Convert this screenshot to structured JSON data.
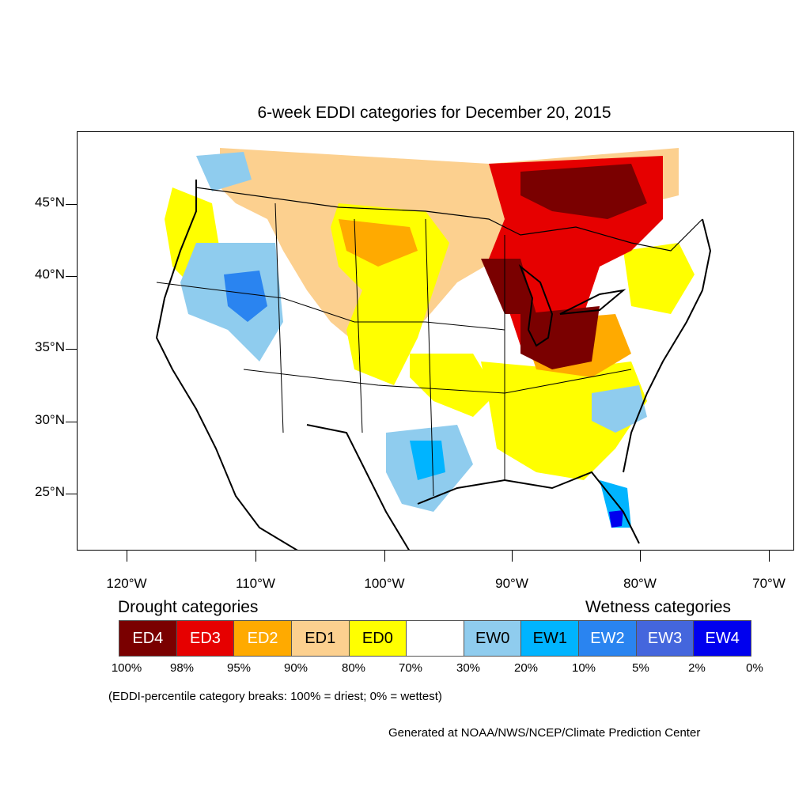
{
  "title": "6-week EDDI categories for December 20, 2015",
  "lat_labels": [
    "45°N",
    "40°N",
    "35°N",
    "30°N",
    "25°N"
  ],
  "lon_labels": [
    "120°W",
    "110°W",
    "100°W",
    "90°W",
    "80°W",
    "70°W"
  ],
  "legend": {
    "drought_heading": "Drought categories",
    "wetness_heading": "Wetness categories",
    "categories": [
      {
        "label": "ED4",
        "color": "#7a0000",
        "text_color": "#ffffff"
      },
      {
        "label": "ED3",
        "color": "#e60000",
        "text_color": "#ffffff"
      },
      {
        "label": "ED2",
        "color": "#ffaa00",
        "text_color": "#ffffff"
      },
      {
        "label": "ED1",
        "color": "#fcd08f",
        "text_color": "#000000"
      },
      {
        "label": "ED0",
        "color": "#ffff00",
        "text_color": "#000000"
      },
      {
        "label": "",
        "color": "#ffffff",
        "text_color": "#000000"
      },
      {
        "label": "EW0",
        "color": "#8fccee",
        "text_color": "#000000"
      },
      {
        "label": "EW1",
        "color": "#00b4ff",
        "text_color": "#000000"
      },
      {
        "label": "EW2",
        "color": "#2a84f0",
        "text_color": "#ffffff"
      },
      {
        "label": "EW3",
        "color": "#4466dd",
        "text_color": "#ffffff"
      },
      {
        "label": "EW4",
        "color": "#0000ee",
        "text_color": "#ffffff"
      }
    ],
    "breaks": [
      "100%",
      "98%",
      "95%",
      "90%",
      "80%",
      "70%",
      "30%",
      "20%",
      "10%",
      "5%",
      "2%",
      "0%"
    ]
  },
  "note": "(EDDI-percentile category breaks: 100% = driest; 0% = wettest)",
  "credit": "Generated at NOAA/NWS/NCEP/Climate Prediction Center"
}
